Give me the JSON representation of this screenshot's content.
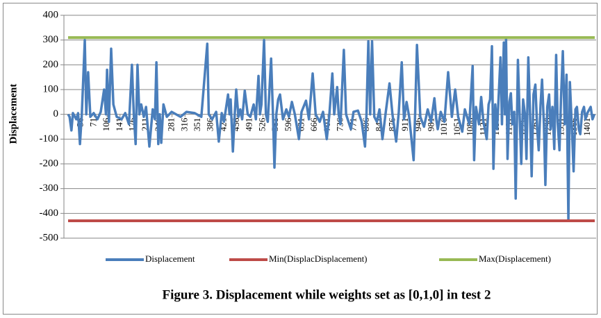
{
  "chart_data": {
    "type": "line",
    "caption": "Figure 3. Displacement while weights set as [0,1,0] in test 2",
    "y_label": "Displacement",
    "xlim": [
      1,
      1420
    ],
    "ylim": [
      -500,
      400
    ],
    "yticks": [
      -500,
      -400,
      -300,
      -200,
      -100,
      0,
      100,
      200,
      300,
      400
    ],
    "xticks": [
      36,
      71,
      106,
      141,
      176,
      211,
      246,
      281,
      316,
      351,
      386,
      421,
      456,
      491,
      526,
      561,
      596,
      631,
      666,
      701,
      736,
      771,
      806,
      841,
      876,
      911,
      946,
      981,
      1016,
      1051,
      1086,
      1121,
      1156,
      1191,
      1226,
      1261,
      1296,
      1331,
      1366,
      1401
    ],
    "grid": true,
    "legend": "bottom",
    "series": [
      {
        "name": "Displacement",
        "color": "#4a7ebb",
        "x": [
          1,
          5,
          10,
          14,
          23,
          28,
          33,
          38,
          46,
          50,
          55,
          61,
          70,
          80,
          89,
          98,
          103,
          106,
          111,
          117,
          123,
          132,
          145,
          155,
          165,
          173,
          178,
          183,
          188,
          193,
          198,
          205,
          211,
          220,
          229,
          235,
          239,
          244,
          248,
          252,
          258,
          267,
          280,
          304,
          320,
          342,
          360,
          376,
          380,
          389,
          400,
          407,
          415,
          421,
          432,
          436,
          439,
          445,
          450,
          454,
          460,
          465,
          470,
          477,
          485,
          492,
          501,
          507,
          514,
          518,
          522,
          529,
          534,
          539,
          548,
          553,
          557,
          562,
          567,
          572,
          580,
          589,
          596,
          604,
          612,
          623,
          630,
          642,
          650,
          660,
          668,
          679,
          688,
          698,
          705,
          713,
          718,
          726,
          730,
          735,
          744,
          750,
          763,
          770,
          782,
          792,
          801,
          805,
          810,
          815,
          820,
          826,
          833,
          840,
          848,
          857,
          867,
          875,
          885,
          892,
          900,
          906,
          913,
          920,
          932,
          936,
          941,
          950,
          960,
          970,
          979,
          988,
          993,
          997,
          1005,
          1015,
          1025,
          1035,
          1044,
          1052,
          1063,
          1070,
          1082,
          1091,
          1095,
          1100,
          1108,
          1114,
          1120,
          1129,
          1134,
          1138,
          1143,
          1147,
          1152,
          1157,
          1166,
          1170,
          1175,
          1178,
          1181,
          1185,
          1190,
          1194,
          1198,
          1203,
          1207,
          1213,
          1218,
          1222,
          1227,
          1232,
          1236,
          1241,
          1245,
          1250,
          1255,
          1260,
          1265,
          1269,
          1274,
          1278,
          1283,
          1287,
          1292,
          1297,
          1301,
          1306,
          1311,
          1316,
          1320,
          1325,
          1329,
          1334,
          1339,
          1344,
          1349,
          1353,
          1358,
          1363,
          1368,
          1372,
          1377,
          1381,
          1386,
          1391,
          1395,
          1400,
          1409,
          1414,
          1419
        ],
        "values": [
          0,
          -10,
          -65,
          5,
          -20,
          5,
          -120,
          0,
          300,
          0,
          170,
          -10,
          5,
          -20,
          10,
          100,
          0,
          180,
          -30,
          265,
          40,
          -10,
          -20,
          5,
          -40,
          200,
          0,
          -120,
          200,
          0,
          40,
          -10,
          30,
          -130,
          20,
          -20,
          210,
          -120,
          0,
          -115,
          40,
          -10,
          10,
          -10,
          10,
          5,
          -10,
          285,
          0,
          -20,
          10,
          -110,
          5,
          -30,
          80,
          0,
          60,
          -150,
          0,
          100,
          -10,
          20,
          -20,
          95,
          0,
          -10,
          40,
          -20,
          155,
          0,
          40,
          300,
          0,
          -30,
          225,
          0,
          -215,
          0,
          60,
          80,
          -20,
          20,
          -10,
          50,
          0,
          -100,
          10,
          55,
          -20,
          165,
          0,
          -30,
          10,
          -100,
          0,
          165,
          0,
          110,
          0,
          -40,
          260,
          0,
          -60,
          10,
          15,
          -30,
          -130,
          0,
          295,
          0,
          295,
          -10,
          -30,
          20,
          -100,
          10,
          125,
          0,
          -110,
          10,
          210,
          -20,
          50,
          -10,
          -185,
          0,
          280,
          -10,
          -50,
          20,
          -30,
          65,
          -20,
          -60,
          10,
          -30,
          170,
          -10,
          100,
          -10,
          -70,
          20,
          -40,
          195,
          -185,
          30,
          -40,
          70,
          -30,
          -100,
          40,
          60,
          275,
          -220,
          40,
          -60,
          230,
          -40,
          290,
          0,
          305,
          -180,
          50,
          85,
          -40,
          10,
          -340,
          220,
          -20,
          -200,
          60,
          0,
          -180,
          230,
          40,
          -250,
          80,
          120,
          -60,
          -145,
          40,
          140,
          -40,
          -285,
          30,
          80,
          -60,
          30,
          -140,
          240,
          -30,
          -145,
          60,
          255,
          -40,
          160,
          -430,
          130,
          -40,
          -230,
          20,
          30,
          -60,
          -80,
          10,
          30,
          -20,
          5,
          30,
          -20,
          0
        ]
      },
      {
        "name": "Min(DisplacDisplacement)",
        "color": "#be4b48",
        "x": [
          1,
          1420
        ],
        "values": [
          -430,
          -430
        ]
      },
      {
        "name": "Max(Displacement)",
        "color": "#98b954",
        "x": [
          1,
          1420
        ],
        "values": [
          310,
          310
        ]
      }
    ]
  }
}
